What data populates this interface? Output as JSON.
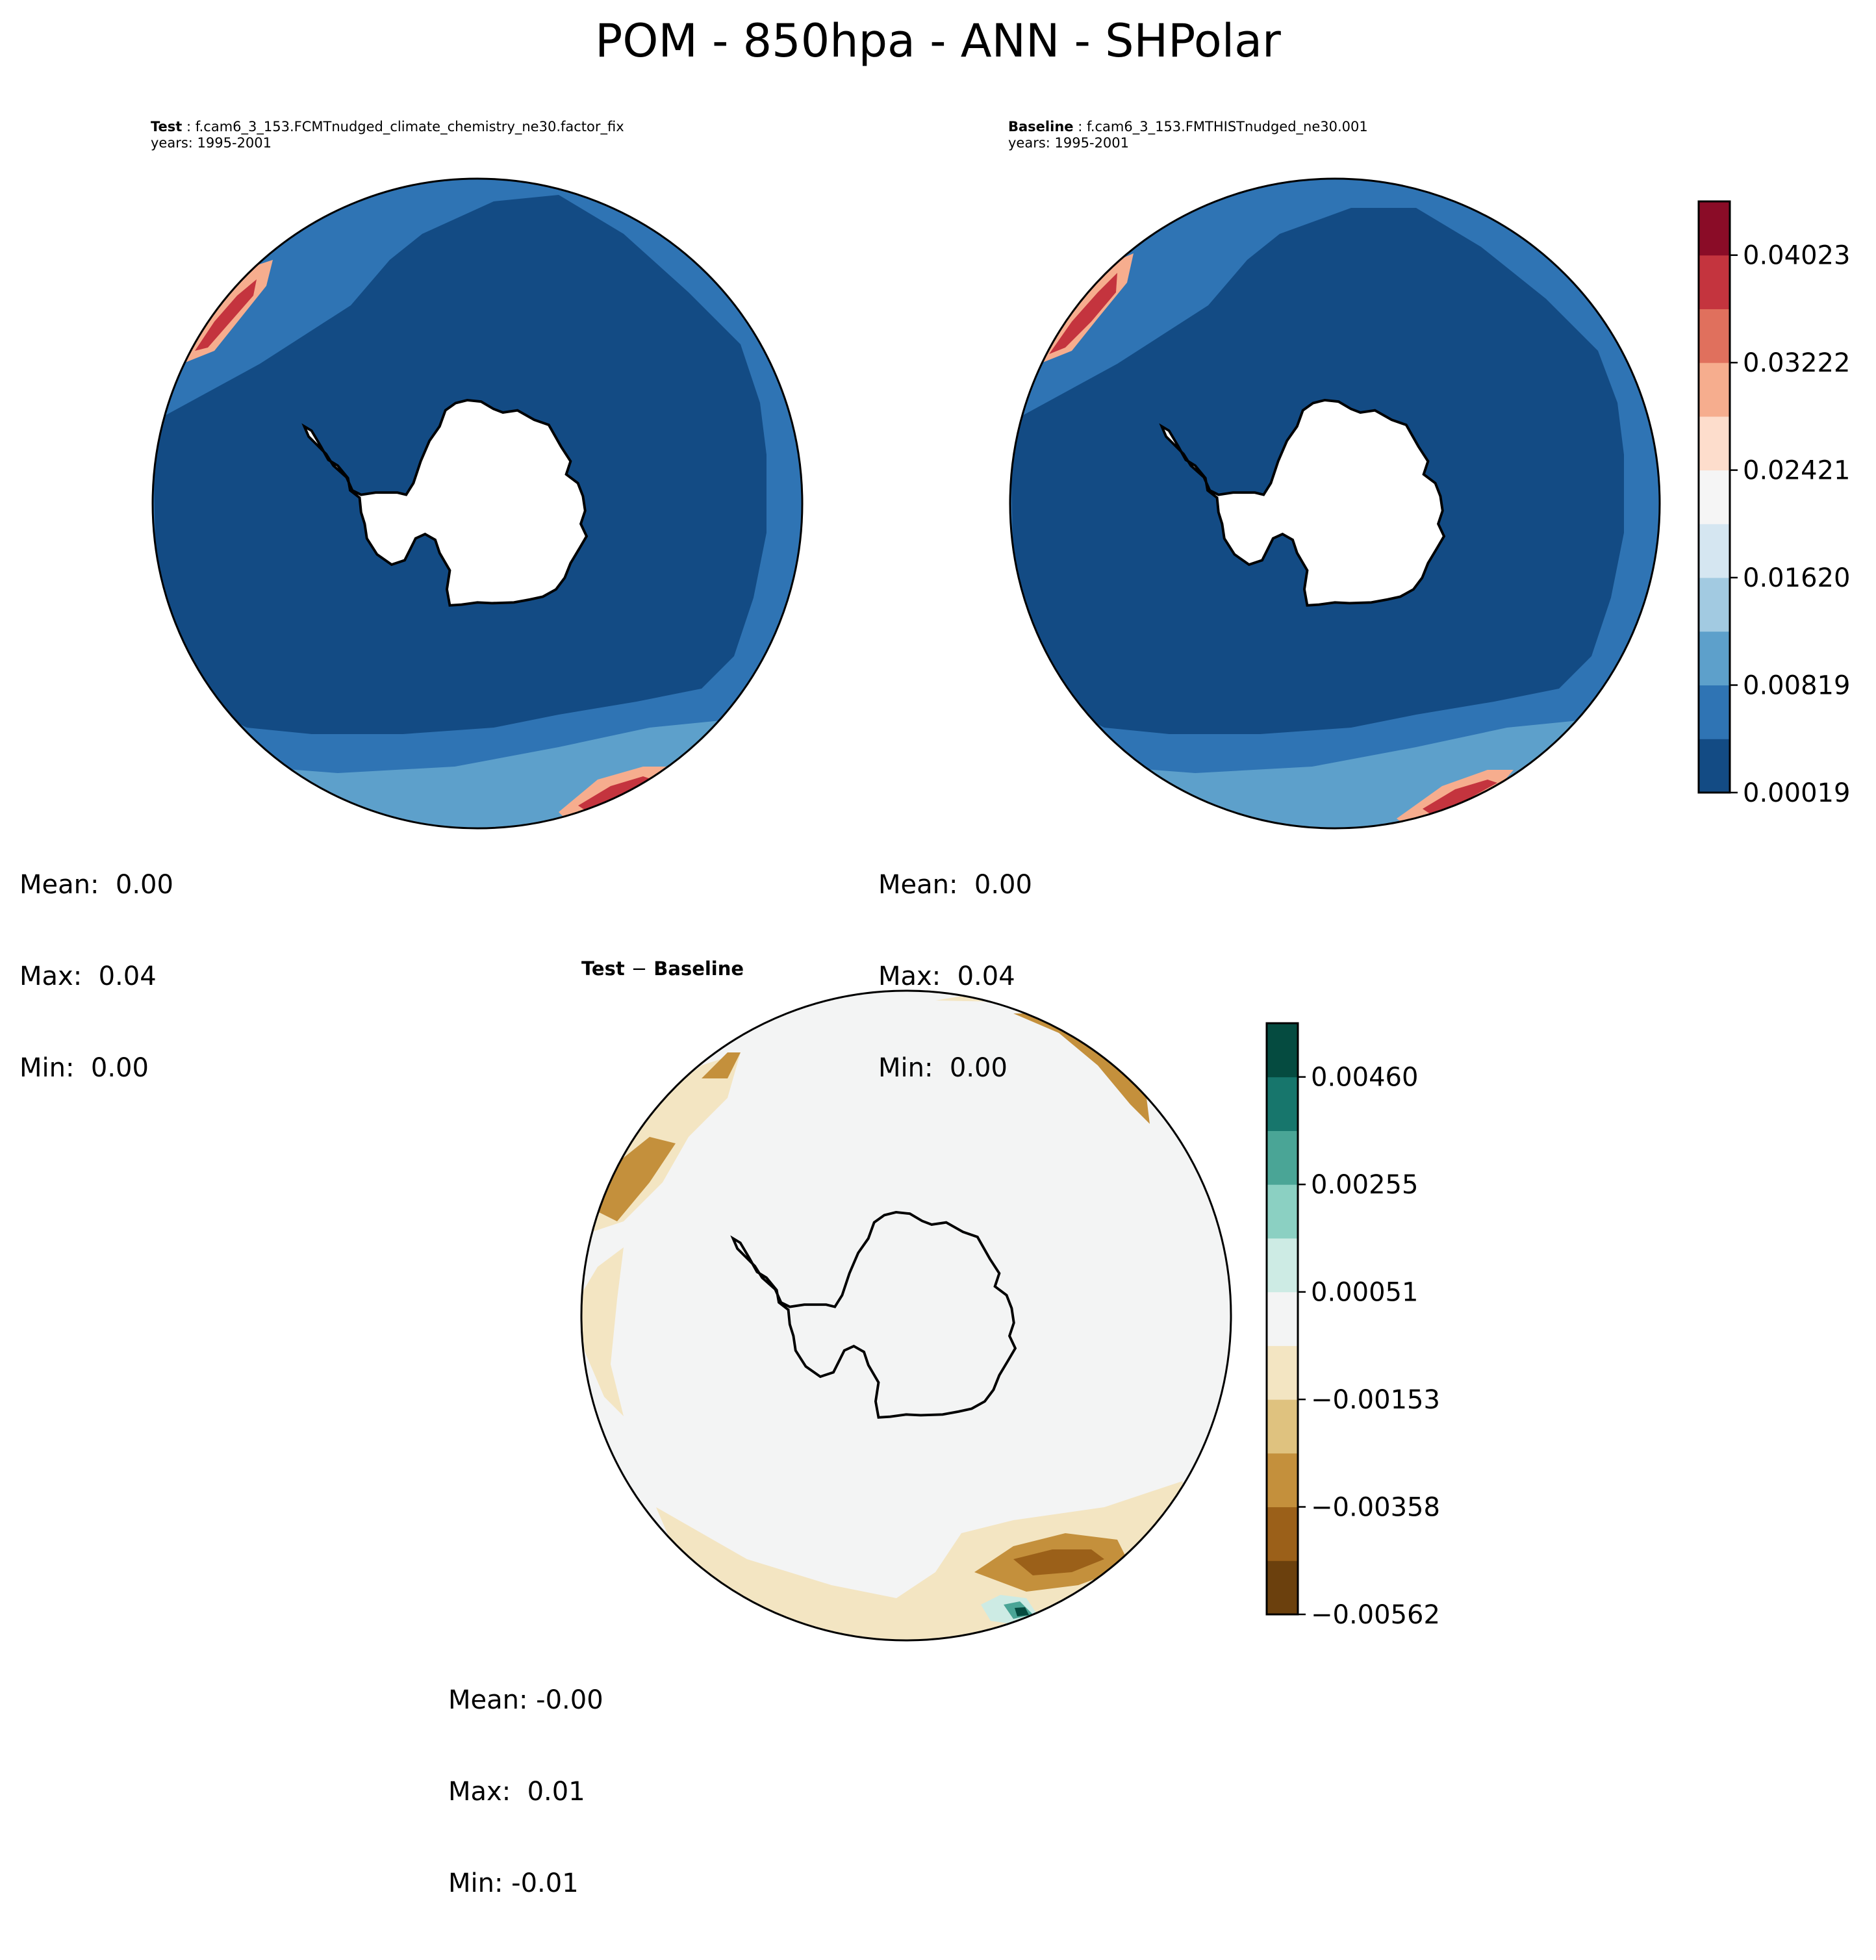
{
  "figure_title": "POM - 850hpa - ANN - SHPolar",
  "panels": {
    "test": {
      "label": "Test",
      "case": "f.cam6_3_153.FCMTnudged_climate_chemistry_ne30.factor_fix",
      "years": "years: 1995-2001",
      "mean": "Mean:  0.00",
      "max": "Max:  0.04",
      "min": "Min:  0.00"
    },
    "baseline": {
      "label": "Baseline",
      "case": "f.cam6_3_153.FMTHISTnudged_ne30.001",
      "years": "years: 1995-2001",
      "mean": "Mean:  0.00",
      "max": "Max:  0.04",
      "min": "Min:  0.00"
    },
    "diff": {
      "title_left": "Test",
      "title_op": "−",
      "title_right": "Baseline",
      "mean": "Mean: -0.00",
      "max": "Max:  0.01",
      "min": "Min: -0.01"
    }
  },
  "colorbars": {
    "main": {
      "colors": [
        "#134b84",
        "#2f74b4",
        "#5da0cb",
        "#a2cae1",
        "#d5e6f1",
        "#f5f5f5",
        "#fdddcc",
        "#f6ad8e",
        "#e0705d",
        "#c4343e",
        "#8a0c27"
      ],
      "ticks": [
        "0.00019",
        "0.00819",
        "0.01620",
        "0.02421",
        "0.03222",
        "0.04023"
      ],
      "min": 0.00019,
      "max": 0.04423
    },
    "diff": {
      "colors": [
        "#6b400d",
        "#9b6019",
        "#c4903c",
        "#dfc27f",
        "#f3e5c2",
        "#f3f4f4",
        "#cdebe4",
        "#8bd0c2",
        "#4aa596",
        "#17766c",
        "#054b40"
      ],
      "ticks": [
        "−0.00562",
        "−0.00358",
        "−0.00153",
        "0.00051",
        "0.00255",
        "0.00460"
      ],
      "min": -0.00562,
      "max": 0.00562
    }
  },
  "map_colors": {
    "ocean_dark": "#134b84",
    "ocean_mid": "#2f74b4",
    "ocean_light": "#5da0cb",
    "diff_neutral": "#f3f4f4",
    "diff_tan_light": "#f3e5c2",
    "diff_tan": "#dfc27f",
    "diff_brown": "#c4903c",
    "diff_dark": "#9b6019",
    "diff_teal_light": "#cdebe4",
    "diff_teal": "#4aa596",
    "diff_teal_dark": "#054b40"
  }
}
